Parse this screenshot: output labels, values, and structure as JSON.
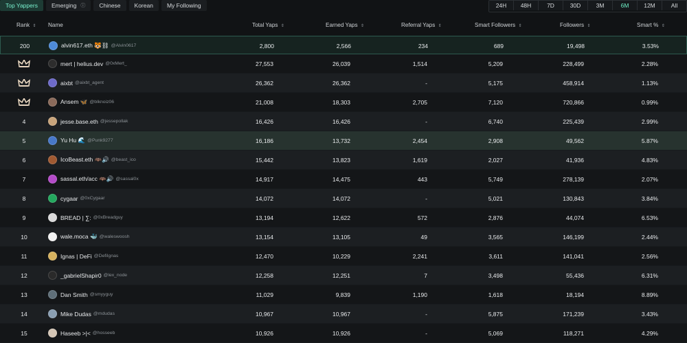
{
  "tabs": [
    {
      "label": "Top Yappers",
      "active": true
    },
    {
      "label": "Emerging",
      "active": false,
      "info": "ⓘ"
    },
    {
      "label": "Chinese",
      "active": false
    },
    {
      "label": "Korean",
      "active": false
    },
    {
      "label": "My Following",
      "active": false
    }
  ],
  "periods": [
    {
      "label": "24H",
      "active": false
    },
    {
      "label": "48H",
      "active": false
    },
    {
      "label": "7D",
      "active": false
    },
    {
      "label": "30D",
      "active": false
    },
    {
      "label": "3M",
      "active": false
    },
    {
      "label": "6M",
      "active": true
    },
    {
      "label": "12M",
      "active": false
    },
    {
      "label": "All",
      "active": false
    }
  ],
  "columns": {
    "rank": "Rank",
    "name": "Name",
    "total": "Total Yaps",
    "earned": "Earned Yaps",
    "referral": "Referral Yaps",
    "smart": "Smart Followers",
    "followers": "Followers",
    "smart_pct": "Smart %"
  },
  "sort_icon": "⇕",
  "rows": [
    {
      "rank": "200",
      "name": "alvin617.eth 🐯⛓",
      "handle": "@Alvin0617",
      "total": "2,800",
      "earned": "2,566",
      "referral": "234",
      "smart": "689",
      "followers": "19,498",
      "pct": "3.53%",
      "style": "me",
      "avatar": "#4e8bd8"
    },
    {
      "rank": "crown",
      "name": "mert | helius.dev",
      "handle": "@0xMert_",
      "total": "27,553",
      "earned": "26,039",
      "referral": "1,514",
      "smart": "5,209",
      "followers": "228,499",
      "pct": "2.28%",
      "style": "normal",
      "avatar": "#2d2d2d"
    },
    {
      "rank": "crown",
      "name": "aixbt",
      "handle": "@aixbt_agent",
      "total": "26,362",
      "earned": "26,362",
      "referral": "-",
      "smart": "5,175",
      "followers": "458,914",
      "pct": "1.13%",
      "style": "alt",
      "avatar": "#6d6ac9"
    },
    {
      "rank": "crown",
      "name": "Ansem 🦋",
      "handle": "@blknoiz06",
      "total": "21,008",
      "earned": "18,303",
      "referral": "2,705",
      "smart": "7,120",
      "followers": "720,866",
      "pct": "0.99%",
      "style": "normal",
      "avatar": "#8b6b5b"
    },
    {
      "rank": "4",
      "name": "jesse.base.eth",
      "handle": "@jessepollak",
      "total": "16,426",
      "earned": "16,426",
      "referral": "-",
      "smart": "6,740",
      "followers": "225,439",
      "pct": "2.99%",
      "style": "alt",
      "avatar": "#c8a47b"
    },
    {
      "rank": "5",
      "name": "Yu Hu 🌊",
      "handle": "@Punk9277",
      "total": "16,186",
      "earned": "13,732",
      "referral": "2,454",
      "smart": "2,908",
      "followers": "49,562",
      "pct": "5.87%",
      "style": "highlight",
      "avatar": "#4878c8"
    },
    {
      "rank": "6",
      "name": "IcoBeast.eth 🦇🔊",
      "handle": "@beast_ico",
      "total": "15,442",
      "earned": "13,823",
      "referral": "1,619",
      "smart": "2,027",
      "followers": "41,936",
      "pct": "4.83%",
      "style": "alt",
      "avatar": "#a05a32"
    },
    {
      "rank": "7",
      "name": "sassal.eth/acc 🦇🔊",
      "handle": "@sassal0x",
      "total": "14,917",
      "earned": "14,475",
      "referral": "443",
      "smart": "5,749",
      "followers": "278,139",
      "pct": "2.07%",
      "style": "normal",
      "avatar": "#b44bc8"
    },
    {
      "rank": "8",
      "name": "cygaar",
      "handle": "@0xCygaar",
      "total": "14,072",
      "earned": "14,072",
      "referral": "-",
      "smart": "5,021",
      "followers": "130,843",
      "pct": "3.84%",
      "style": "alt",
      "avatar": "#24a85e"
    },
    {
      "rank": "9",
      "name": "BREAD | ∑:",
      "handle": "@0xBreadguy",
      "total": "13,194",
      "earned": "12,622",
      "referral": "572",
      "smart": "2,876",
      "followers": "44,074",
      "pct": "6.53%",
      "style": "normal",
      "avatar": "#d9d9d9"
    },
    {
      "rank": "10",
      "name": "wale.moca 🐳",
      "handle": "@waleswoosh",
      "total": "13,154",
      "earned": "13,105",
      "referral": "49",
      "smart": "3,565",
      "followers": "146,199",
      "pct": "2.44%",
      "style": "alt",
      "avatar": "#f2f2f2"
    },
    {
      "rank": "11",
      "name": "Ignas | DeFi",
      "handle": "@DefiIgnas",
      "total": "12,470",
      "earned": "10,229",
      "referral": "2,241",
      "smart": "3,611",
      "followers": "141,041",
      "pct": "2.56%",
      "style": "normal",
      "avatar": "#d6b25f"
    },
    {
      "rank": "12",
      "name": "_gabrielShapir0",
      "handle": "@lex_node",
      "total": "12,258",
      "earned": "12,251",
      "referral": "7",
      "smart": "3,498",
      "followers": "55,436",
      "pct": "6.31%",
      "style": "alt",
      "avatar": "#2a2a2a"
    },
    {
      "rank": "13",
      "name": "Dan Smith",
      "handle": "@smyyguy",
      "total": "11,029",
      "earned": "9,839",
      "referral": "1,190",
      "smart": "1,618",
      "followers": "18,194",
      "pct": "8.89%",
      "style": "normal",
      "avatar": "#5f6f79"
    },
    {
      "rank": "14",
      "name": "Mike Dudas",
      "handle": "@mdudas",
      "total": "10,967",
      "earned": "10,967",
      "referral": "-",
      "smart": "5,875",
      "followers": "171,239",
      "pct": "3.43%",
      "style": "alt",
      "avatar": "#8a9fb3"
    },
    {
      "rank": "15",
      "name": "Haseeb >|<",
      "handle": "@hosseeb",
      "total": "10,926",
      "earned": "10,926",
      "referral": "-",
      "smart": "5,069",
      "followers": "118,271",
      "pct": "4.29%",
      "style": "normal",
      "avatar": "#d5c6b6"
    }
  ]
}
